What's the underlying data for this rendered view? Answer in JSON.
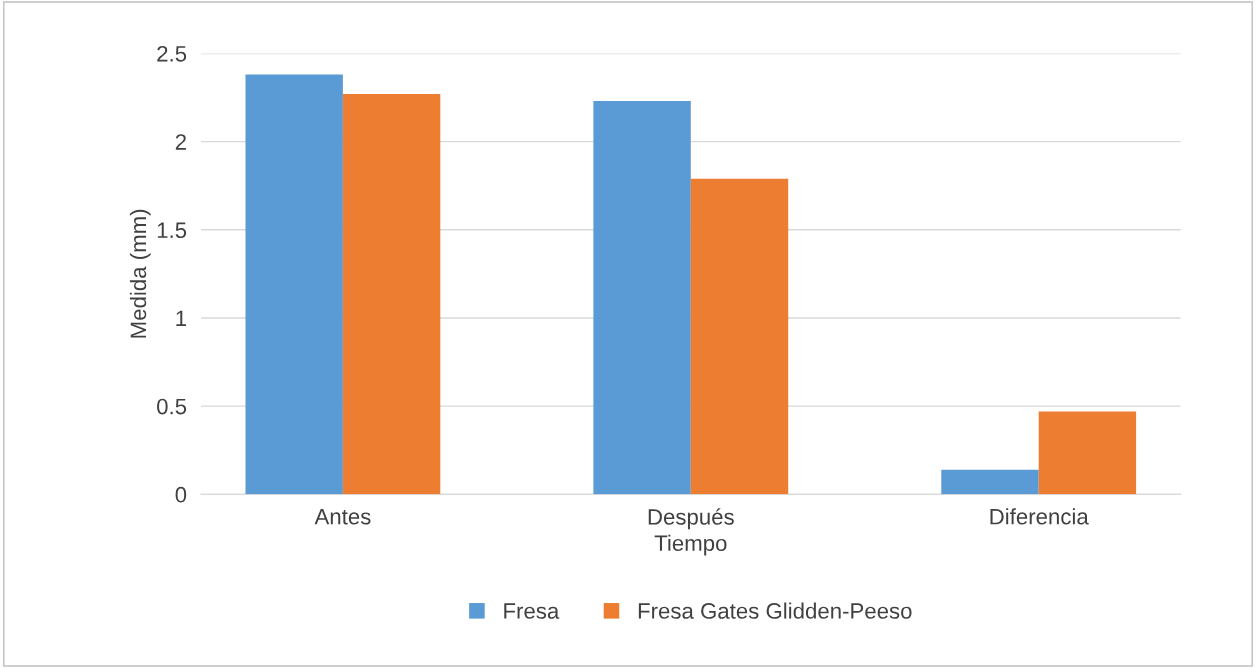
{
  "chart_data": {
    "type": "bar",
    "xlabel": "Tiempo",
    "ylabel": "Medida (mm)",
    "categories": [
      "Antes",
      "Después",
      "Diferencia"
    ],
    "series": [
      {
        "name": "Fresa",
        "color": "#5b9bd5",
        "values": [
          2.38,
          2.23,
          0.14
        ]
      },
      {
        "name": "Fresa Gates Glidden-Peeso",
        "color": "#ed7d31",
        "values": [
          2.27,
          1.79,
          0.47
        ]
      }
    ],
    "ylim": [
      0,
      2.5
    ],
    "yticks": [
      0,
      0.5,
      1,
      1.5,
      2,
      2.5
    ],
    "grid": "y",
    "legend": "bottom"
  }
}
